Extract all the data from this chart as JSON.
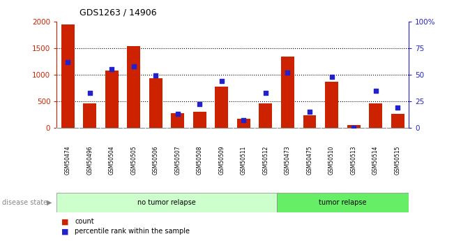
{
  "title": "GDS1263 / 14906",
  "samples": [
    "GSM50474",
    "GSM50496",
    "GSM50504",
    "GSM50505",
    "GSM50506",
    "GSM50507",
    "GSM50508",
    "GSM50509",
    "GSM50511",
    "GSM50512",
    "GSM50473",
    "GSM50475",
    "GSM50510",
    "GSM50513",
    "GSM50514",
    "GSM50515"
  ],
  "counts": [
    1950,
    460,
    1080,
    1540,
    930,
    270,
    300,
    770,
    170,
    460,
    1340,
    230,
    870,
    50,
    460,
    260
  ],
  "percentiles": [
    62,
    33,
    55,
    58,
    49,
    13,
    22,
    44,
    7,
    33,
    52,
    15,
    48,
    0,
    35,
    19
  ],
  "group_labels": [
    "no tumor relapse",
    "tumor relapse"
  ],
  "group_sizes": [
    10,
    6
  ],
  "group_colors_light": [
    "#CCFFCC",
    "#66EE66"
  ],
  "bar_color": "#CC2200",
  "dot_color": "#2222CC",
  "ylim_left": [
    0,
    2000
  ],
  "ylim_right": [
    0,
    100
  ],
  "yticks_left": [
    0,
    500,
    1000,
    1500,
    2000
  ],
  "yticks_right": [
    0,
    25,
    50,
    75,
    100
  ],
  "ytick_labels_right": [
    "0",
    "25",
    "50",
    "75",
    "100%"
  ],
  "legend_count": "count",
  "legend_pct": "percentile rank within the sample",
  "disease_state_label": "disease state",
  "left_color": "#CC2200",
  "right_color": "#2222CC",
  "xlabel_gray": "#888888",
  "grid_color": "#BBBBBB"
}
